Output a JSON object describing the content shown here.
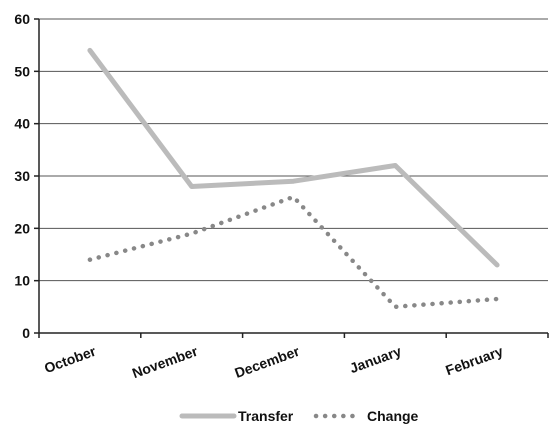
{
  "chart_data": {
    "type": "line",
    "categories": [
      "October",
      "November",
      "December",
      "January",
      "February"
    ],
    "series": [
      {
        "name": "Transfer",
        "values": [
          54,
          28,
          29,
          32,
          13
        ],
        "color": "#bbbbbb",
        "style": "solid"
      },
      {
        "name": "Change",
        "values": [
          14,
          19,
          26,
          5,
          6.5
        ],
        "color": "#888888",
        "style": "dotted"
      }
    ],
    "yticks": [
      0,
      10,
      20,
      30,
      40,
      50,
      60
    ],
    "ylim": [
      0,
      60
    ],
    "grid": "horizontal",
    "legend_position": "bottom"
  }
}
